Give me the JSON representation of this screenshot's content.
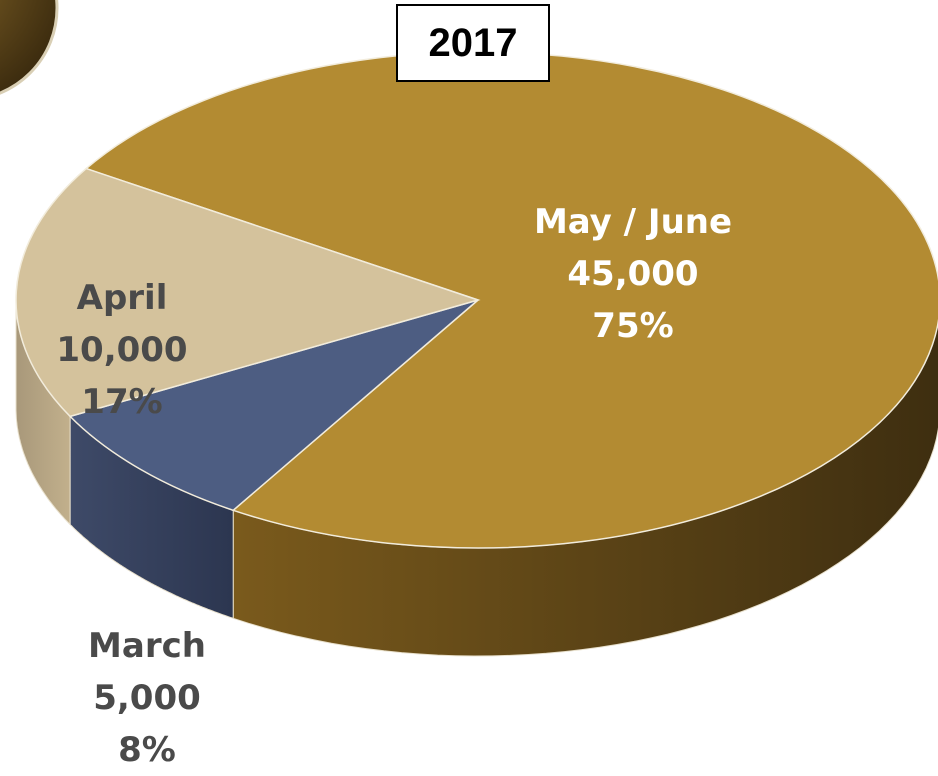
{
  "chart_data": {
    "type": "pie",
    "title": "2017",
    "slices": [
      {
        "name": "May / June",
        "value": 45000,
        "value_label": "45,000",
        "percent_label": "75%",
        "color": "#B38B32"
      },
      {
        "name": "April",
        "value": 10000,
        "value_label": "10,000",
        "percent_label": "17%",
        "color": "#D4C29C"
      },
      {
        "name": "March",
        "value": 5000,
        "value_label": "5,000",
        "percent_label": "8%",
        "color": "#4D5D82"
      }
    ],
    "style": "3d"
  }
}
